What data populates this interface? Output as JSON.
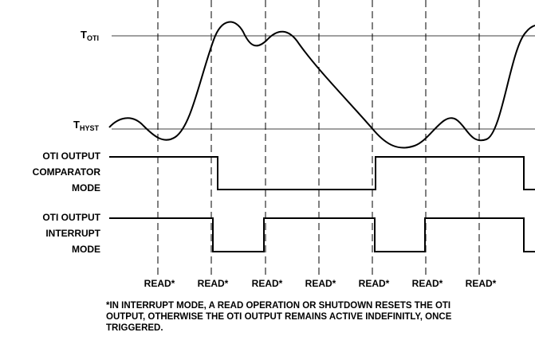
{
  "levels": [
    {
      "main": "T",
      "sub": "OTI"
    },
    {
      "main": "T",
      "sub": "HYST"
    }
  ],
  "signals": [
    {
      "lines": [
        "OTI OUTPUT",
        "COMPARATOR",
        "MODE"
      ]
    },
    {
      "lines": [
        "OTI OUTPUT",
        "INTERRUPT",
        "MODE"
      ]
    }
  ],
  "reads": [
    "READ*",
    "READ*",
    "READ*",
    "READ*",
    "READ*",
    "READ*",
    "READ*"
  ],
  "footnote": [
    "*IN INTERRUPT MODE, A READ OPERATION OR SHUTDOWN RESETS THE OTI",
    "OUTPUT, OTHERWISE THE OTI OUTPUT REMAINS ACTIVE INDEFINITLY, ONCE",
    "TRIGGERED."
  ]
}
